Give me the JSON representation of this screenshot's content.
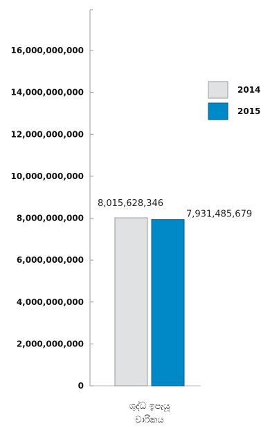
{
  "chart_data": {
    "type": "bar",
    "categories": [
      "ශුද්ධ ඉපැයූ වාරිකය"
    ],
    "category_lines": [
      "ශුද්ධ ඉපැයූ",
      "වාරිකය"
    ],
    "series": [
      {
        "name": "2014",
        "values": [
          8015628346
        ],
        "color": "#e0e1e3",
        "stroke": "#9a9a9a",
        "label": "8,015,628,346"
      },
      {
        "name": "2015",
        "values": [
          7931485679
        ],
        "color": "#0089c6",
        "stroke": "#0a5f86",
        "label": "7,931,485,679"
      }
    ],
    "ylim": [
      0,
      18000000000
    ],
    "yticks": [
      0,
      2000000000,
      4000000000,
      6000000000,
      8000000000,
      10000000000,
      12000000000,
      14000000000,
      16000000000
    ],
    "ytick_labels": [
      "0",
      "2,000,000,000",
      "4,000,000,000",
      "6,000,000,000",
      "8,000,000,000",
      "10,000,000,000",
      "12,000,000,000",
      "14,000,000,000",
      "16,000,000,000"
    ],
    "legend_position": "top-right",
    "grid": false
  }
}
